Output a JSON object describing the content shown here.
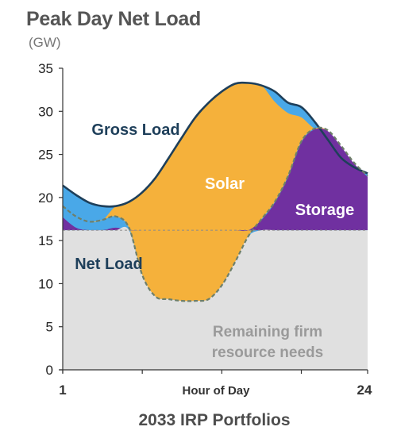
{
  "chart_data": {
    "type": "area",
    "title": "Peak Day Net Load",
    "unit_label": "(GW)",
    "caption": "2033 IRP Portfolios",
    "xlabel": "Hour of Day",
    "x_tick_labels": [
      "1",
      "24"
    ],
    "xlim": [
      1,
      24
    ],
    "ylim": [
      0,
      35
    ],
    "y_ticks": [
      0,
      5,
      10,
      15,
      20,
      25,
      30,
      35
    ],
    "firm_level": 16.2,
    "hours": [
      1,
      2,
      3,
      4,
      5,
      6,
      7,
      8,
      9,
      10,
      11,
      12,
      13,
      14,
      15,
      16,
      17,
      18,
      19,
      20,
      21,
      22,
      23,
      24
    ],
    "series": [
      {
        "name": "Gross Load",
        "values": [
          21.4,
          20.3,
          19.4,
          19.0,
          19.0,
          19.5,
          20.6,
          22.3,
          24.6,
          27.0,
          29.3,
          31.0,
          32.3,
          33.2,
          33.3,
          33.0,
          32.3,
          31.0,
          30.5,
          28.8,
          26.7,
          24.6,
          23.5,
          22.8
        ]
      },
      {
        "name": "Net Load",
        "values": [
          19.0,
          17.8,
          17.2,
          17.4,
          17.8,
          16.5,
          11.0,
          8.5,
          8.2,
          8.0,
          8.0,
          8.2,
          9.8,
          12.5,
          15.5,
          17.5,
          19.5,
          22.5,
          26.5,
          28.0,
          27.8,
          26.0,
          24.0,
          22.5
        ]
      }
    ],
    "pre_storage_net_load": [
      19.0,
      17.8,
      17.2,
      17.4,
      17.8,
      16.5,
      11.0,
      8.5,
      8.2,
      8.0,
      8.0,
      8.2,
      9.8,
      12.5,
      15.5,
      17.5,
      19.5,
      22.5,
      26.5,
      28.0,
      27.8,
      26.0,
      24.0,
      22.5
    ],
    "area_labels": {
      "gross": "Gross Load",
      "solar": "Solar",
      "storage": "Storage",
      "net": "Net Load",
      "firm_line1": "Remaining firm",
      "firm_line2": "resource needs"
    },
    "colors": {
      "firm": "#e0e0e0",
      "storage": "#7030a0",
      "blue_band": "#49a8e8",
      "solar": "#f5b13b",
      "gross_line": "#1e3f5a",
      "net_line": "#6e7f6a"
    }
  }
}
